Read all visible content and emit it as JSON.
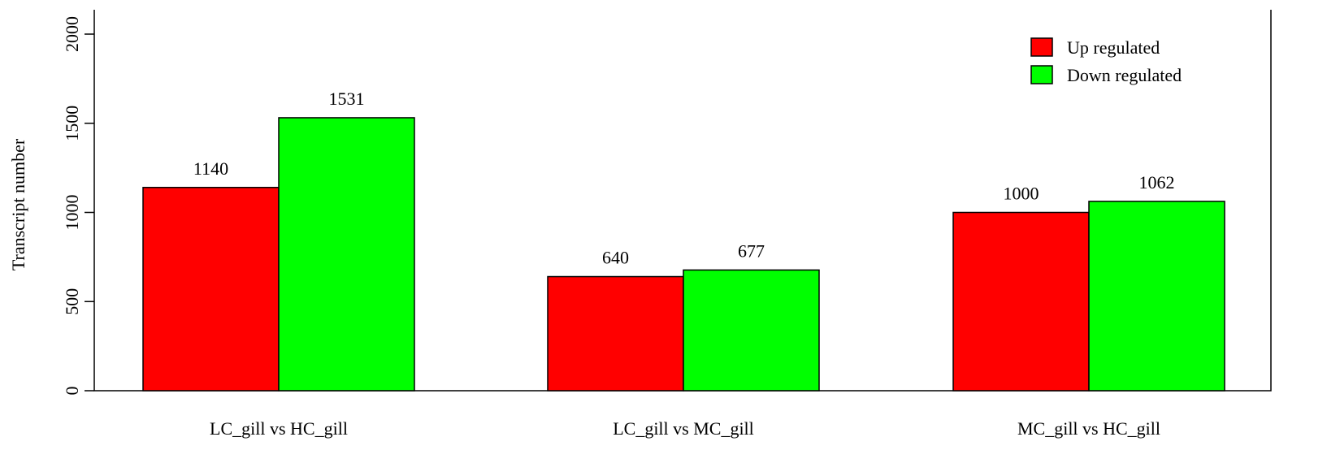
{
  "chart_data": {
    "type": "bar",
    "categories": [
      "LC_gill vs HC_gill",
      "LC_gill vs MC_gill",
      "MC_gill vs HC_gill"
    ],
    "series": [
      {
        "name": "Up regulated",
        "values": [
          1140,
          640,
          1000
        ],
        "color": "#ff0000"
      },
      {
        "name": "Down regulated",
        "values": [
          1531,
          677,
          1062
        ],
        "color": "#00ff00"
      }
    ],
    "title": "",
    "xlabel": "",
    "ylabel": "Transcript number",
    "ylim": [
      0,
      2000
    ],
    "yticks": [
      0,
      500,
      1000,
      1500,
      2000
    ],
    "grid": false,
    "legend_position": "top-right",
    "bar_outline_color": "#000000"
  }
}
